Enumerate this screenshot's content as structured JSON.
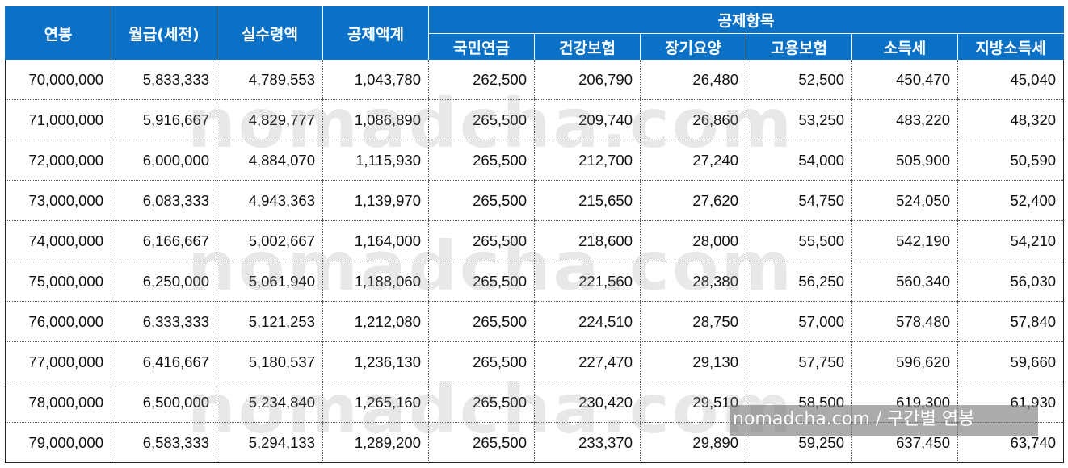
{
  "table": {
    "headers": {
      "salary": "연봉",
      "monthly": "월급(세전)",
      "net": "실수령액",
      "deduction_total": "공제액계",
      "deduction_group": "공제항목",
      "items": [
        "국민연금",
        "건강보험",
        "장기요양",
        "고용보험",
        "소득세",
        "지방소득세"
      ]
    },
    "rows": [
      [
        "70,000,000",
        "5,833,333",
        "4,789,553",
        "1,043,780",
        "262,500",
        "206,790",
        "26,480",
        "52,500",
        "450,470",
        "45,040"
      ],
      [
        "71,000,000",
        "5,916,667",
        "4,829,777",
        "1,086,890",
        "265,500",
        "209,740",
        "26,860",
        "53,250",
        "483,220",
        "48,320"
      ],
      [
        "72,000,000",
        "6,000,000",
        "4,884,070",
        "1,115,930",
        "265,500",
        "212,700",
        "27,240",
        "54,000",
        "505,900",
        "50,590"
      ],
      [
        "73,000,000",
        "6,083,333",
        "4,943,363",
        "1,139,970",
        "265,500",
        "215,650",
        "27,620",
        "54,750",
        "524,050",
        "52,400"
      ],
      [
        "74,000,000",
        "6,166,667",
        "5,002,667",
        "1,164,000",
        "265,500",
        "218,600",
        "28,000",
        "55,500",
        "542,190",
        "54,210"
      ],
      [
        "75,000,000",
        "6,250,000",
        "5,061,940",
        "1,188,060",
        "265,500",
        "221,560",
        "28,380",
        "56,250",
        "560,340",
        "56,030"
      ],
      [
        "76,000,000",
        "6,333,333",
        "5,121,253",
        "1,212,080",
        "265,500",
        "224,510",
        "28,750",
        "57,000",
        "578,480",
        "57,840"
      ],
      [
        "77,000,000",
        "6,416,667",
        "5,180,537",
        "1,236,130",
        "265,500",
        "227,470",
        "29,130",
        "57,750",
        "596,620",
        "59,660"
      ],
      [
        "78,000,000",
        "6,500,000",
        "5,234,840",
        "1,265,160",
        "265,500",
        "230,420",
        "29,510",
        "58,500",
        "619,300",
        "61,930"
      ],
      [
        "79,000,000",
        "6,583,333",
        "5,294,133",
        "1,289,200",
        "265,500",
        "233,370",
        "29,890",
        "59,250",
        "637,450",
        "63,740"
      ]
    ]
  },
  "watermark": {
    "text": "nomadcha.com",
    "caption": "nomadcha.com / 구간별 연봉"
  },
  "colors": {
    "header_bg": "#0a71c6",
    "header_text": "#ffffff"
  }
}
